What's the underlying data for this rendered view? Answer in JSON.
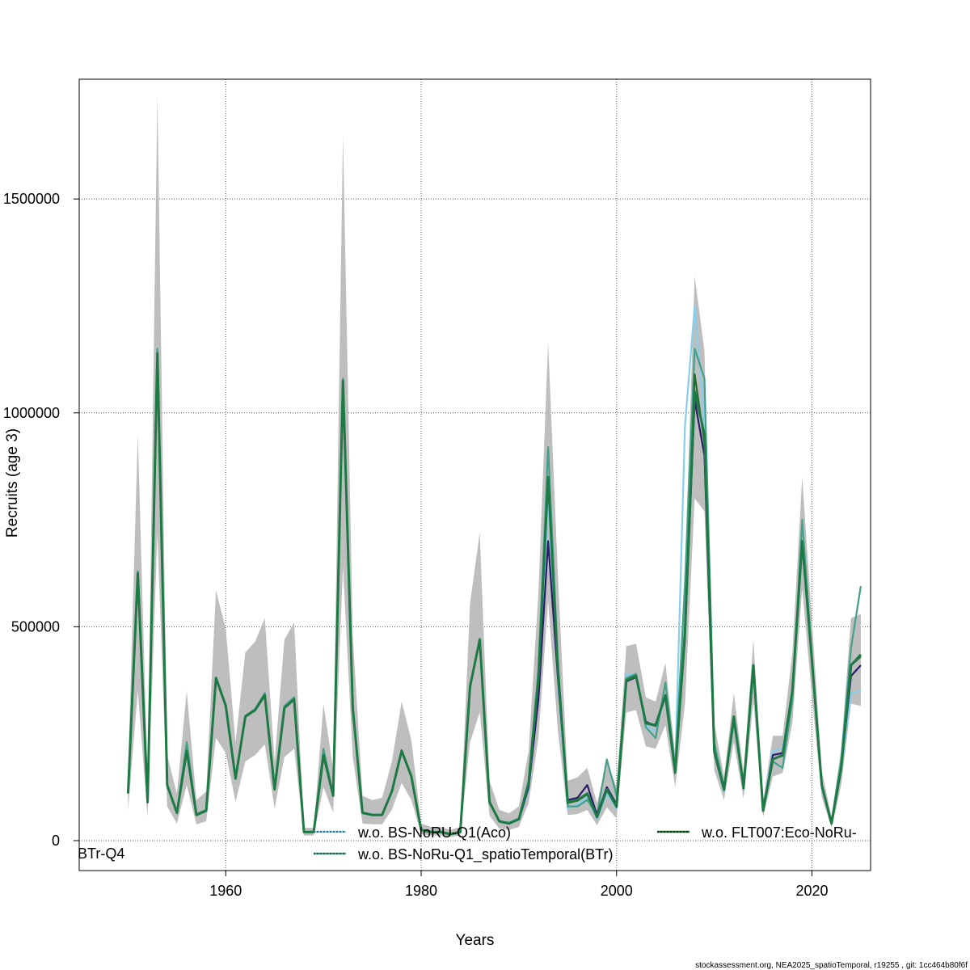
{
  "chart_data": {
    "type": "line",
    "xlabel": "Years",
    "ylabel": "Recruits (age 3)",
    "xlim": [
      1945,
      2026
    ],
    "ylim": [
      -70000,
      1780000
    ],
    "x_ticks": [
      1960,
      1980,
      2000,
      2020
    ],
    "y_ticks": [
      0,
      500000,
      1000000,
      1500000
    ],
    "y_tick_labels": [
      "0",
      "500000",
      "1000000",
      "1500000"
    ],
    "grid": true,
    "legend_position": "bottom",
    "legend": [
      {
        "name": "w.o. BS-NoRU-Q1(Aco)",
        "color": "#87CEEB"
      },
      {
        "name": "w.o. BS-NoRu-Q1_spatioTemporal(BTr)",
        "color": "#45A08A"
      },
      {
        "name": "w.o. FLT007:Eco-NoRu-",
        "color": "#1E6B2F"
      }
    ],
    "extra_label": "BTr-Q4",
    "footer": "stockassessment.org, NEA2025_spatioTemporal, r19255 , git: 1cc464b80f6f",
    "base": {
      "name": "",
      "color": "#1E7A45",
      "x": [
        1950,
        1951,
        1952,
        1953,
        1954,
        1955,
        1956,
        1957,
        1958,
        1959,
        1960,
        1961,
        1962,
        1963,
        1964,
        1965,
        1966,
        1967,
        1968,
        1969,
        1970,
        1971,
        1972,
        1973,
        1974,
        1975,
        1976,
        1977,
        1978,
        1979,
        1980,
        1981,
        1982,
        1983,
        1984,
        1985,
        1986,
        1987,
        1988,
        1989,
        1990,
        1991,
        1992,
        1993,
        1994,
        1995,
        1996,
        1997,
        1998,
        1999,
        2000,
        2001,
        2002,
        2003,
        2004,
        2005,
        2006,
        2007,
        2008,
        2009,
        2010,
        2011,
        2012,
        2013,
        2014,
        2015,
        2016,
        2017,
        2018,
        2019,
        2020,
        2021,
        2022,
        2023,
        2024,
        2025
      ],
      "y": [
        110000,
        625000,
        90000,
        1140000,
        130000,
        65000,
        210000,
        60000,
        70000,
        380000,
        315000,
        145000,
        290000,
        305000,
        340000,
        120000,
        310000,
        330000,
        20000,
        20000,
        200000,
        105000,
        1075000,
        310000,
        65000,
        60000,
        60000,
        115000,
        210000,
        150000,
        25000,
        20000,
        20000,
        15000,
        20000,
        360000,
        470000,
        90000,
        45000,
        40000,
        50000,
        135000,
        380000,
        850000,
        400000,
        90000,
        95000,
        110000,
        55000,
        120000,
        80000,
        375000,
        385000,
        275000,
        270000,
        340000,
        160000,
        490000,
        1050000,
        950000,
        210000,
        120000,
        290000,
        125000,
        410000,
        70000,
        190000,
        200000,
        350000,
        700000,
        420000,
        130000,
        40000,
        170000,
        410000,
        435000
      ],
      "lower": [
        70000,
        350000,
        55000,
        720000,
        80000,
        40000,
        130000,
        38000,
        45000,
        240000,
        205000,
        90000,
        185000,
        200000,
        225000,
        75000,
        195000,
        215000,
        12000,
        12000,
        125000,
        65000,
        640000,
        195000,
        40000,
        38000,
        38000,
        72000,
        135000,
        95000,
        15000,
        12000,
        12000,
        9000,
        12000,
        230000,
        300000,
        58000,
        28000,
        25000,
        32000,
        88000,
        240000,
        560000,
        255000,
        60000,
        62000,
        72000,
        36000,
        78000,
        52000,
        300000,
        305000,
        220000,
        215000,
        270000,
        125000,
        320000,
        800000,
        770000,
        165000,
        95000,
        230000,
        98000,
        325000,
        55000,
        150000,
        158000,
        275000,
        590000,
        335000,
        102000,
        30000,
        130000,
        320000,
        315000
      ],
      "upper": [
        160000,
        950000,
        140000,
        1740000,
        200000,
        110000,
        350000,
        95000,
        115000,
        585000,
        495000,
        230000,
        440000,
        465000,
        520000,
        185000,
        470000,
        510000,
        30000,
        30000,
        320000,
        165000,
        1650000,
        480000,
        105000,
        95000,
        100000,
        185000,
        325000,
        235000,
        40000,
        32000,
        32000,
        25000,
        32000,
        555000,
        720000,
        140000,
        72000,
        64000,
        80000,
        210000,
        580000,
        1165000,
        620000,
        140000,
        148000,
        170000,
        88000,
        185000,
        125000,
        455000,
        460000,
        335000,
        325000,
        415000,
        200000,
        640000,
        1320000,
        1145000,
        275000,
        150000,
        345000,
        160000,
        470000,
        92000,
        245000,
        245000,
        440000,
        850000,
        515000,
        165000,
        55000,
        215000,
        520000,
        530000
      ]
    },
    "series": [
      {
        "name": "w.o. BS-NoRU-Q1(Aco)",
        "color": "#87CEEB",
        "x": [
          1990,
          1991,
          1992,
          1993,
          1994,
          1995,
          1996,
          1997,
          1998,
          1999,
          2000,
          2001,
          2002,
          2003,
          2004,
          2005,
          2006,
          2007,
          2008,
          2009,
          2010,
          2011,
          2012,
          2013,
          2014,
          2015,
          2016,
          2017,
          2018,
          2019,
          2020,
          2021,
          2022,
          2023,
          2024,
          2025
        ],
        "y": [
          45000,
          120000,
          340000,
          800000,
          370000,
          75000,
          85000,
          100000,
          50000,
          110000,
          75000,
          390000,
          385000,
          270000,
          255000,
          340000,
          170000,
          970000,
          1250000,
          980000,
          205000,
          115000,
          280000,
          120000,
          400000,
          72000,
          210000,
          215000,
          345000,
          690000,
          415000,
          125000,
          40000,
          165000,
          345000,
          350000
        ]
      },
      {
        "name": "w.o. BS-NoRu-Q1_spatioTemporal(BTr)",
        "color": "#45A08A",
        "x": [
          1950,
          1951,
          1952,
          1953,
          1954,
          1955,
          1956,
          1957,
          1958,
          1959,
          1960,
          1961,
          1962,
          1963,
          1964,
          1965,
          1966,
          1967,
          1968,
          1969,
          1970,
          1971,
          1972,
          1973,
          1974,
          1975,
          1976,
          1977,
          1978,
          1979,
          1980,
          1981,
          1982,
          1983,
          1984,
          1985,
          1986,
          1987,
          1988,
          1989,
          1990,
          1991,
          1992,
          1993,
          1994,
          1995,
          1996,
          1997,
          1998,
          1999,
          2000,
          2001,
          2002,
          2003,
          2004,
          2005,
          2006,
          2007,
          2008,
          2009,
          2010,
          2011,
          2012,
          2013,
          2014,
          2015,
          2016,
          2017,
          2018,
          2019,
          2020,
          2021,
          2022,
          2023,
          2024,
          2025
        ],
        "y": [
          112000,
          630000,
          92000,
          1150000,
          132000,
          66000,
          230000,
          62000,
          72000,
          382000,
          318000,
          147000,
          292000,
          308000,
          345000,
          122000,
          315000,
          335000,
          21000,
          21000,
          215000,
          107000,
          1080000,
          312000,
          66000,
          61000,
          61000,
          117000,
          212000,
          152000,
          26000,
          21000,
          21000,
          16000,
          21000,
          362000,
          472000,
          92000,
          46000,
          42000,
          52000,
          140000,
          400000,
          920000,
          420000,
          80000,
          80000,
          95000,
          60000,
          190000,
          105000,
          380000,
          390000,
          265000,
          240000,
          370000,
          170000,
          600000,
          1150000,
          1080000,
          230000,
          125000,
          275000,
          135000,
          395000,
          80000,
          185000,
          170000,
          330000,
          750000,
          430000,
          125000,
          45000,
          190000,
          450000,
          595000
        ]
      },
      {
        "name": "",
        "color": "#2B1C6B",
        "x": [
          1990,
          1991,
          1992,
          1993,
          1994,
          1995,
          1996,
          1997,
          1998,
          1999,
          2000,
          2001,
          2002,
          2003,
          2004,
          2005,
          2006,
          2007,
          2008,
          2009,
          2010,
          2011,
          2012,
          2013,
          2014,
          2015,
          2016,
          2017,
          2018,
          2019,
          2020,
          2021,
          2022,
          2023,
          2024,
          2025
        ],
        "y": [
          48000,
          125000,
          330000,
          700000,
          380000,
          95000,
          100000,
          130000,
          60000,
          125000,
          85000,
          372000,
          382000,
          278000,
          268000,
          338000,
          158000,
          480000,
          1030000,
          900000,
          205000,
          118000,
          288000,
          122000,
          408000,
          70000,
          200000,
          205000,
          352000,
          695000,
          418000,
          128000,
          40000,
          172000,
          385000,
          410000
        ]
      },
      {
        "name": "w.o. FLT007:Eco-NoRu-",
        "color": "#1E6B2F",
        "x": [
          1990,
          1991,
          1992,
          1993,
          1994,
          1995,
          1996,
          1997,
          1998,
          1999,
          2000,
          2001,
          2002,
          2003,
          2004,
          2005,
          2006,
          2007,
          2008,
          2009,
          2010,
          2011,
          2012,
          2013,
          2014,
          2015,
          2016,
          2017,
          2018,
          2019,
          2020,
          2021,
          2022,
          2023,
          2024,
          2025
        ],
        "y": [
          49000,
          134000,
          378000,
          848000,
          398000,
          88000,
          93000,
          108000,
          54000,
          118000,
          78000,
          373000,
          384000,
          274000,
          268000,
          339000,
          159000,
          470000,
          1090000,
          930000,
          208000,
          119000,
          289000,
          124000,
          409000,
          69000,
          192000,
          198000,
          349000,
          698000,
          419000,
          129000,
          40000,
          170000,
          410000,
          430000
        ]
      }
    ]
  }
}
